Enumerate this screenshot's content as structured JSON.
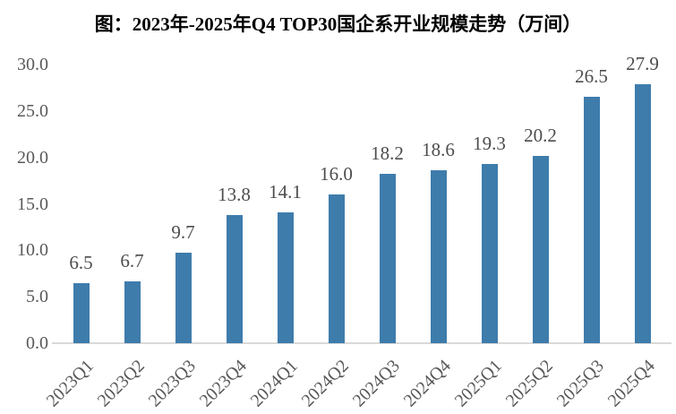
{
  "title": "图：2023年-2025年Q4 TOP30国企系开业规模走势（万间）",
  "colors": {
    "bar": "#3e7cac",
    "axis_line": "#d9d9d9",
    "tick_text": "#595959",
    "value_label_text": "#4d4d4d",
    "title_text": "#000000",
    "background": "#ffffff"
  },
  "chart_data": {
    "type": "bar",
    "title": "图：2023年-2025年Q4 TOP30国企系开业规模走势（万间）",
    "categories": [
      "2023Q1",
      "2023Q2",
      "2023Q3",
      "2023Q4",
      "2024Q1",
      "2024Q2",
      "2024Q3",
      "2024Q4",
      "2025Q1",
      "2025Q2",
      "2025Q3",
      "2025Q4"
    ],
    "values": [
      6.5,
      6.7,
      9.7,
      13.8,
      14.1,
      16.0,
      18.2,
      18.6,
      19.3,
      20.2,
      26.5,
      27.9
    ],
    "value_labels": [
      "6.5",
      "6.7",
      "9.7",
      "13.8",
      "14.1",
      "16.0",
      "18.2",
      "18.6",
      "19.3",
      "20.2",
      "26.5",
      "27.9"
    ],
    "xlabel": "",
    "ylabel": "",
    "ylim": [
      0,
      30
    ],
    "yticks": [
      0,
      5,
      10,
      15,
      20,
      25,
      30
    ],
    "ytick_labels": [
      "0.0",
      "5.0",
      "10.0",
      "15.0",
      "20.0",
      "25.0",
      "30.0"
    ],
    "grid": false,
    "legend_position": "none",
    "bar_color": "#3e7cac"
  }
}
